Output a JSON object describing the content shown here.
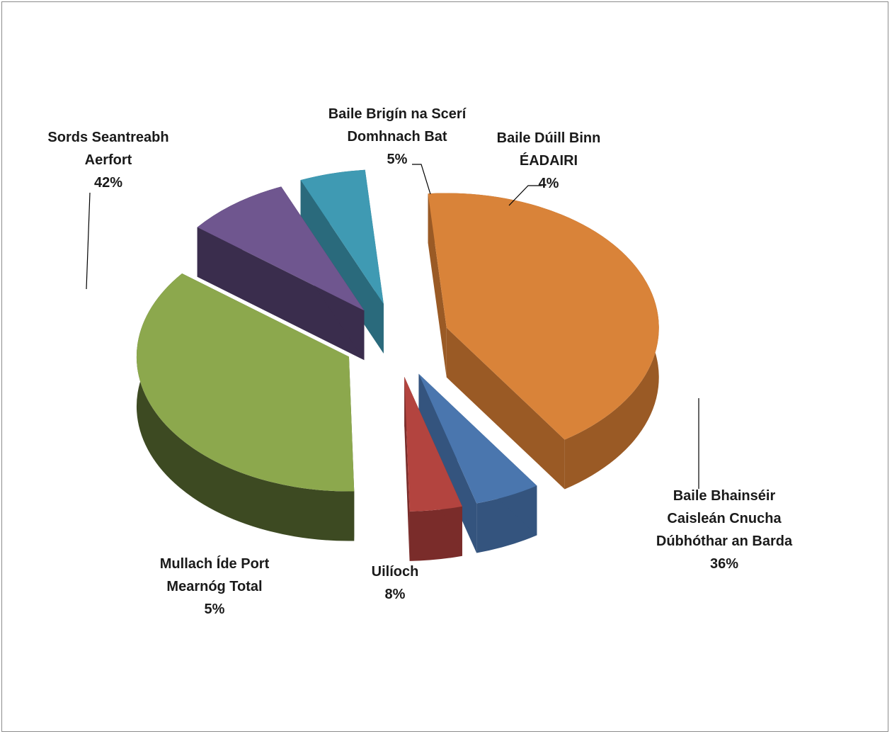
{
  "chart_data": {
    "type": "pie",
    "title": "",
    "style": "3d-exploded",
    "slices": [
      {
        "lines": [
          "Sords  Seantreabh",
          "Aerfort"
        ],
        "value": 42,
        "pct": "42%",
        "color": "#D98339",
        "side": "#9A5A25"
      },
      {
        "lines": [
          "Baile Brigín na Scerí",
          "Domhnach Bat"
        ],
        "value": 5,
        "pct": "5%",
        "color": "#4A76AE",
        "side": "#34547E"
      },
      {
        "lines": [
          "Baile Dúill Binn",
          "ÉADAIRI"
        ],
        "value": 4,
        "pct": "4%",
        "color": "#B3443F",
        "side": "#7A2C2A"
      },
      {
        "lines": [
          "Baile Bhainséir",
          "Caisleán Cnucha",
          "Dúbhóthar an Barda"
        ],
        "value": 36,
        "pct": "36%",
        "color": "#8CA84D",
        "side": "#3D4A22"
      },
      {
        "lines": [
          "Uilíoch"
        ],
        "value": 8,
        "pct": "8%",
        "color": "#6F568F",
        "side": "#3A2D4D"
      },
      {
        "lines": [
          "Mullach Íde Port",
          "Mearnóg Total"
        ],
        "value": 5,
        "pct": "5%",
        "color": "#3F9AB3",
        "side": "#2A6A7C"
      }
    ]
  }
}
